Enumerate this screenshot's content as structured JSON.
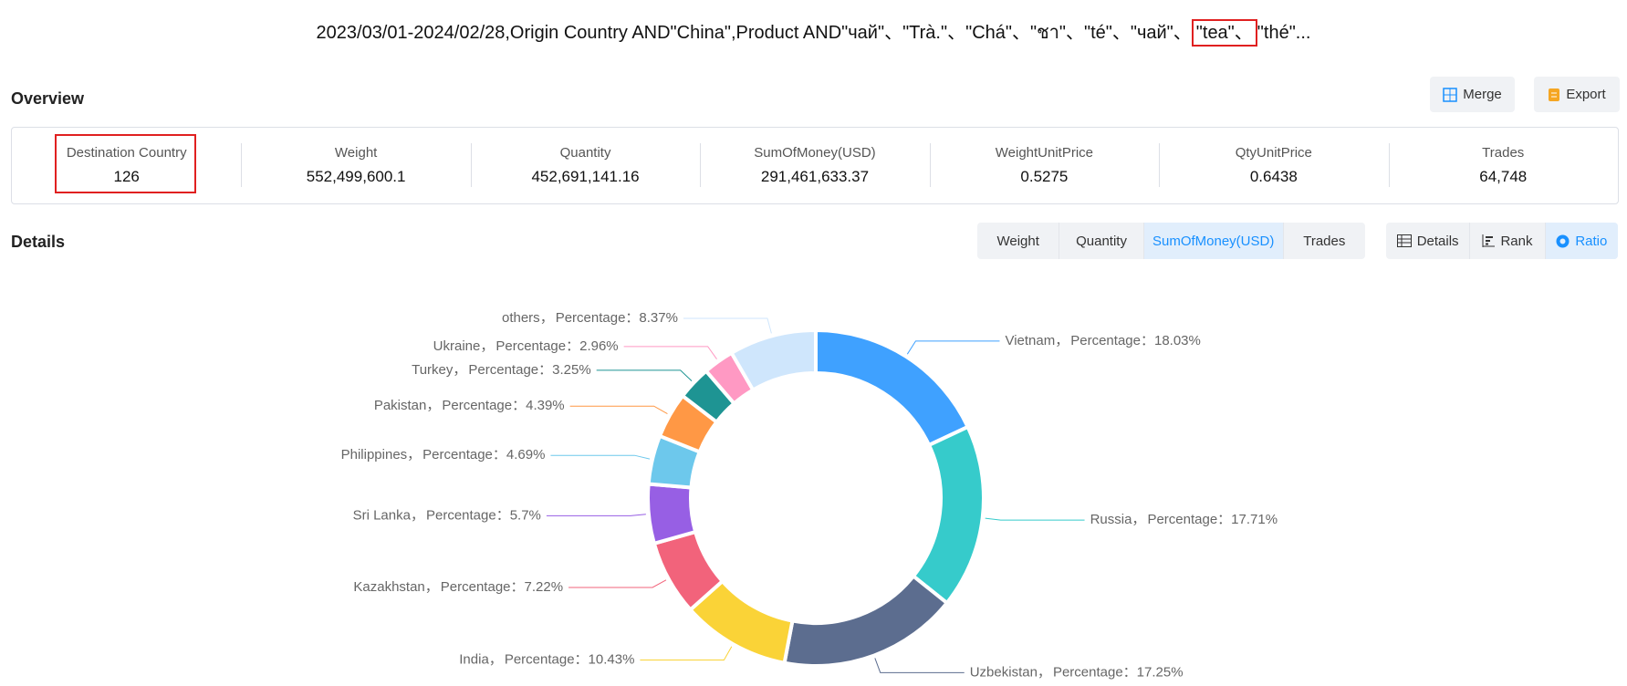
{
  "header": {
    "title_before": "2023/03/01-2024/02/28,Origin Country AND\"China\",Product AND\"чай\"、\"Trà.\"、\"Chá\"、\"ชา\"、\"té\"、\"чай\"、",
    "title_highlight": "\"tea\"、",
    "title_after": "\"thé\"..."
  },
  "overview": {
    "title": "Overview",
    "buttons": [
      "Merge",
      "Export"
    ],
    "stats": [
      {
        "label": "Destination Country",
        "value": "126"
      },
      {
        "label": "Weight",
        "value": "552,499,600.1"
      },
      {
        "label": "Quantity",
        "value": "452,691,141.16"
      },
      {
        "label": "SumOfMoney(USD)",
        "value": "291,461,633.37"
      },
      {
        "label": "WeightUnitPrice",
        "value": "0.5275"
      },
      {
        "label": "QtyUnitPrice",
        "value": "0.6438"
      },
      {
        "label": "Trades",
        "value": "64,748"
      }
    ]
  },
  "details": {
    "title": "Details",
    "metric_tabs": [
      "Weight",
      "Quantity",
      "SumOfMoney(USD)",
      "Trades"
    ],
    "view_tabs": [
      "Details",
      "Rank",
      "Ratio"
    ]
  },
  "chart_data": {
    "type": "pie",
    "categories": [
      "Vietnam",
      "Russia",
      "Uzbekistan",
      "India",
      "Kazakhstan",
      "Sri Lanka",
      "Philippines",
      "Pakistan",
      "Turkey",
      "Ukraine",
      "others"
    ],
    "values": [
      18.03,
      17.71,
      17.25,
      10.43,
      7.22,
      5.7,
      4.69,
      4.39,
      3.25,
      2.96,
      8.37
    ],
    "value_labels": [
      "Percentage：18.03%",
      "Percentage：17.71%",
      "Percentage：17.25%",
      "Percentage：10.43%",
      "Percentage：7.22%",
      "Percentage：5.7%",
      "Percentage：4.69%",
      "Percentage：4.39%",
      "Percentage：3.25%",
      "Percentage：2.96%",
      "Percentage：8.37%"
    ],
    "label_separator": "，",
    "colors": [
      "#3fa1ff",
      "#36cbcb",
      "#5c6d8f",
      "#fad337",
      "#f2637b",
      "#975fe4",
      "#6dc8ec",
      "#ff9845",
      "#1e9493",
      "#ff99c3",
      "#cfe6fc"
    ]
  }
}
